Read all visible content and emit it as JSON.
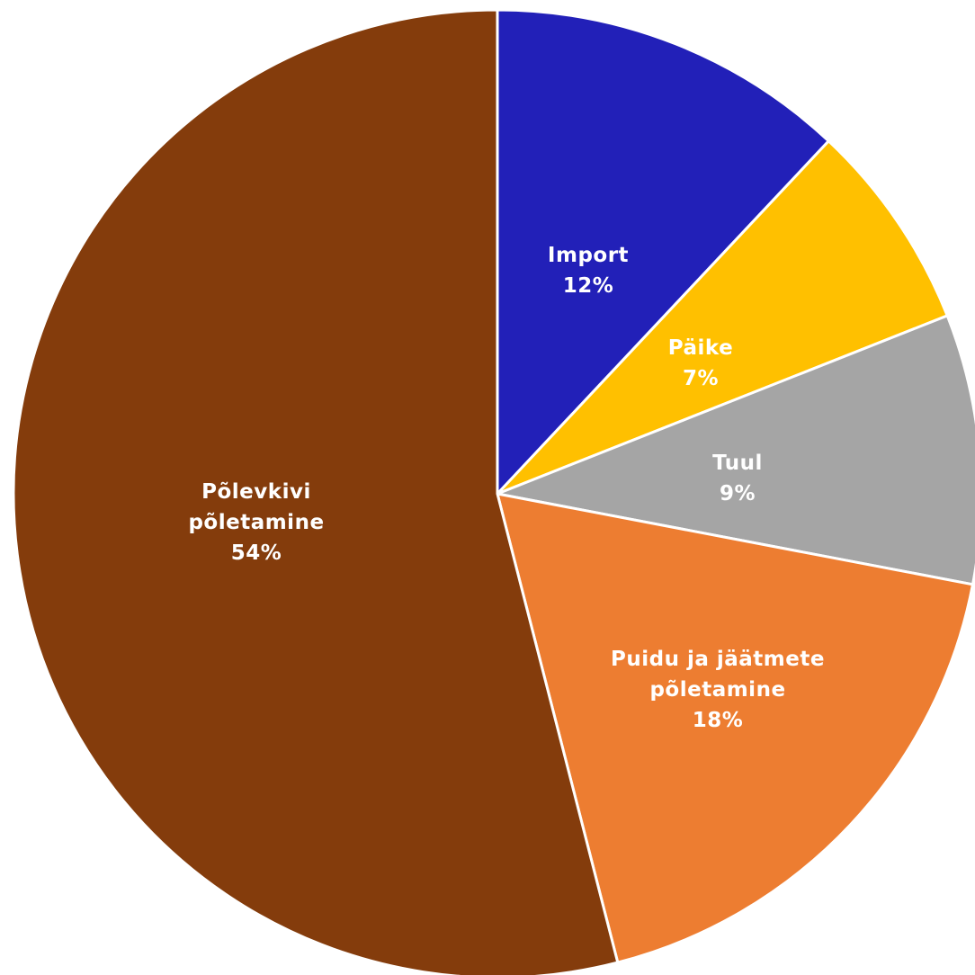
{
  "chart_data": {
    "type": "pie",
    "title": "",
    "start_angle_deg": 0,
    "direction": "clockwise",
    "slices": [
      {
        "label_lines": [
          "Import"
        ],
        "value_label": "12%",
        "value": 12,
        "color": "#2220B8",
        "label_color": "#FFFFFF"
      },
      {
        "label_lines": [
          "Päike"
        ],
        "value_label": "7%",
        "value": 7,
        "color": "#FFC000",
        "label_color": "#FFFFFF"
      },
      {
        "label_lines": [
          "Tuul"
        ],
        "value_label": "9%",
        "value": 9,
        "color": "#A5A5A5",
        "label_color": "#FFFFFF"
      },
      {
        "label_lines": [
          "Puidu ja jäätmete",
          "põletamine"
        ],
        "value_label": "18%",
        "value": 18,
        "color": "#ED7D31",
        "label_color": "#FFFFFF"
      },
      {
        "label_lines": [
          "Põlevkivi",
          "põletamine"
        ],
        "value_label": "54%",
        "value": 54,
        "color": "#843C0C",
        "label_color": "#FFFFFF"
      }
    ]
  }
}
